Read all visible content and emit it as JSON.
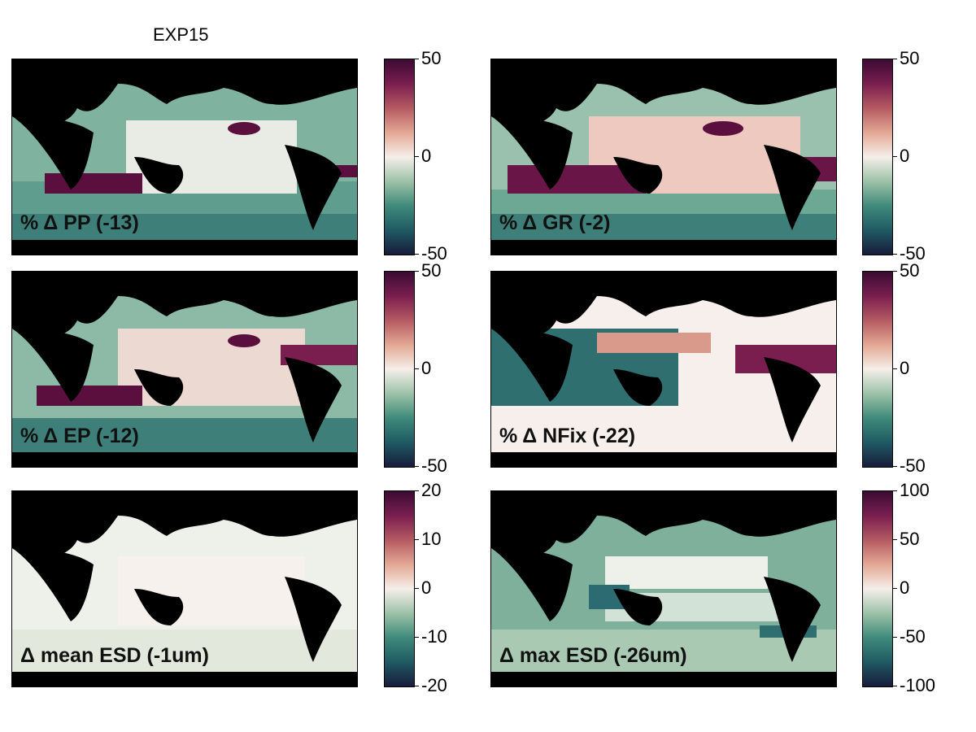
{
  "figure_title": "EXP15",
  "colormap": [
    "#171c3a",
    "#1f5a63",
    "#3f8a7b",
    "#9dc2a8",
    "#f5efe9",
    "#e3a894",
    "#b55a62",
    "#7a1e4f",
    "#3a0b33"
  ],
  "panels": [
    {
      "id": "pp",
      "label": "% Δ PP (-13)",
      "ticks": [
        "50",
        "0",
        "-50"
      ],
      "style": "mixed-green"
    },
    {
      "id": "gr",
      "label": "% Δ GR (-2)",
      "ticks": [
        "50",
        "0",
        "-50"
      ],
      "style": "mixed-red"
    },
    {
      "id": "ep",
      "label": "% Δ EP (-12)",
      "ticks": [
        "50",
        "0",
        "-50"
      ],
      "style": "mixed-green"
    },
    {
      "id": "nfix",
      "label": "% Δ NFix (-22)",
      "ticks": [
        "50",
        "0",
        "-50"
      ],
      "style": "pale"
    },
    {
      "id": "mean",
      "label": "Δ mean ESD (-1um)",
      "ticks": [
        "20",
        "10",
        "0",
        "-10",
        "-20"
      ],
      "style": "very-pale"
    },
    {
      "id": "max",
      "label": "Δ max ESD (-26um)",
      "ticks": [
        "100",
        "50",
        "0",
        "-50",
        "-100"
      ],
      "style": "greenish"
    }
  ]
}
